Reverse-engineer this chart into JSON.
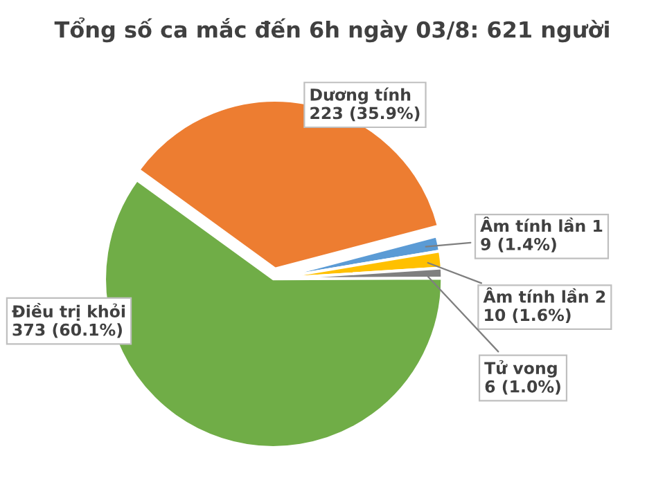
{
  "chart_data": {
    "type": "pie",
    "title": "Tổng số ca mắc đến 6h ngày 03/8: 621 người",
    "categories": [
      "Dương tính",
      "Âm tính lần 1",
      "Âm tính lần 2",
      "Tử vong",
      "Điều trị khỏi"
    ],
    "values": [
      223,
      9,
      10,
      6,
      373
    ],
    "value_labels": [
      "223 (35.9%)",
      "9 (1.4%)",
      "10 (1.6%)",
      "6 (1.0%)",
      "373 (60.1%)"
    ],
    "colors": [
      "#ed7d31",
      "#5b9bd5",
      "#ffc000",
      "#7f7f7f",
      "#70ad47"
    ],
    "legend": false
  }
}
